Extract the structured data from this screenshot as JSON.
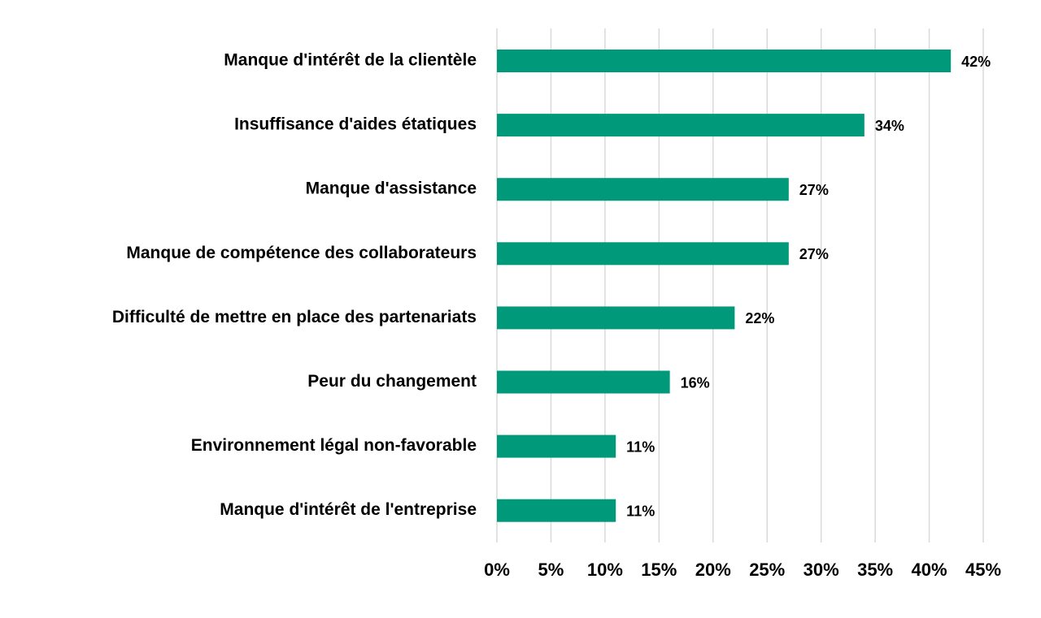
{
  "chart_data": {
    "type": "bar",
    "orientation": "horizontal",
    "title": "",
    "xlabel": "",
    "ylabel": "",
    "categories": [
      "Manque d'intérêt de la clientèle",
      "Insuffisance d'aides étatiques",
      "Manque d'assistance",
      "Manque de compétence des collaborateurs",
      "Difficulté de mettre en place des partenariats",
      "Peur du changement",
      "Environnement légal non-favorable",
      "Manque d'intérêt de l'entreprise"
    ],
    "values": [
      42,
      34,
      27,
      27,
      22,
      16,
      11,
      11
    ],
    "value_labels": [
      "42%",
      "34%",
      "27%",
      "27%",
      "22%",
      "16%",
      "11%",
      "11%"
    ],
    "xlim": [
      0,
      45
    ],
    "ticks": [
      0,
      5,
      10,
      15,
      20,
      25,
      30,
      35,
      40,
      45
    ],
    "tick_labels": [
      "0%",
      "5%",
      "10%",
      "15%",
      "20%",
      "25%",
      "30%",
      "35%",
      "40%",
      "45%"
    ],
    "grid": true,
    "legend": "none",
    "colors": {
      "bar": "#009a7b",
      "grid": "#d9d9d9",
      "text": "#000000"
    }
  }
}
